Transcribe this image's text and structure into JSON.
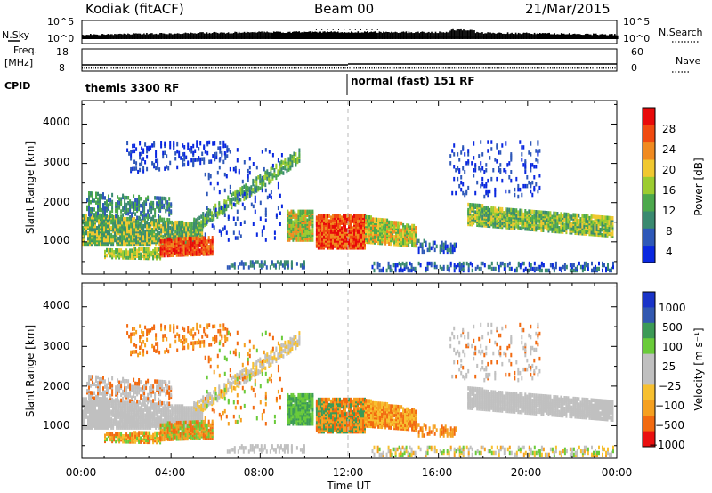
{
  "header": {
    "station": "Kodiak (fitACF)",
    "beam": "Beam 00",
    "date": "21/Mar/2015"
  },
  "small_panels": {
    "nsky_label": "N.Sky",
    "nsearch_label": "N.Search",
    "freq_label_line1": "Freq.",
    "freq_label_line2": "[MHz]",
    "nave_label": "Nave",
    "cpid_label": "CPID",
    "nsky_ticks_left": [
      "10^5",
      "10^0"
    ],
    "nsky_ticks_right": [
      "10^5",
      "10^0"
    ],
    "freq_ticks_left": [
      "18",
      "8"
    ],
    "nave_ticks_right": [
      "60",
      "0"
    ],
    "cpid_modes": [
      "themis 3300 RF",
      "normal (fast) 151 RF"
    ]
  },
  "colors": {
    "power_scale": [
      "#0a28e0",
      "#2e58b8",
      "#3a8a70",
      "#4ca84c",
      "#9ccc30",
      "#f0c830",
      "#f08a20",
      "#f04a10",
      "#e80a0a"
    ],
    "velocity_scale": [
      "#ea1010",
      "#f26a10",
      "#f5a020",
      "#f7c030",
      "#c0c0c0",
      "#c0c0c0",
      "#6acb3a",
      "#3c9a56",
      "#3258b0",
      "#1a34c8"
    ]
  },
  "chart_data": [
    {
      "type": "heatmap",
      "name": "power",
      "xlabel": "",
      "ylabel": "Slant Range [km]",
      "xlim": [
        0,
        24
      ],
      "ylim": [
        180,
        4600
      ],
      "y_ticks": [
        "1000",
        "2000",
        "3000",
        "4000"
      ],
      "colorbar_label": "Power [dB]",
      "colorbar_ticks": [
        "4",
        "8",
        "12",
        "16",
        "20",
        "24",
        "28"
      ],
      "colorbar_range": [
        0,
        30
      ]
    },
    {
      "type": "heatmap",
      "name": "velocity",
      "xlabel": "Time UT",
      "ylabel": "Slant Range [km]",
      "xlim": [
        0,
        24
      ],
      "ylim": [
        180,
        4600
      ],
      "y_ticks": [
        "1000",
        "2000",
        "3000",
        "4000"
      ],
      "x_ticks": [
        "00:00",
        "04:00",
        "08:00",
        "12:00",
        "16:00",
        "20:00",
        "00:00"
      ],
      "colorbar_label": "Velocity [m s⁻¹]",
      "colorbar_ticks": [
        "1000",
        "500",
        "100",
        "25",
        "−25",
        "−100",
        "−500",
        "−1000"
      ]
    }
  ]
}
